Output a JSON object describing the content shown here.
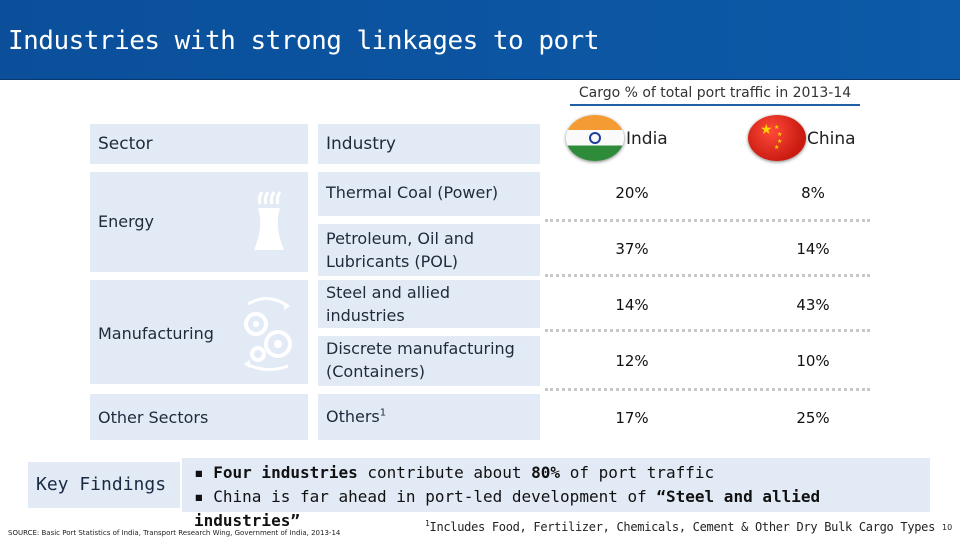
{
  "title": "Industries with strong linkages to port",
  "cargo_caption": "Cargo % of total port traffic in 2013-14",
  "headers": {
    "sector": "Sector",
    "industry": "Industry",
    "india": "India",
    "china": "China"
  },
  "sectors": {
    "energy": "Energy",
    "manufacturing": "Manufacturing",
    "other": "Other Sectors"
  },
  "rows": [
    {
      "industry": "Thermal Coal (Power)",
      "india": "20%",
      "china": "8%"
    },
    {
      "industry": "Petroleum, Oil and Lubricants (POL)",
      "india": "37%",
      "china": "14%"
    },
    {
      "industry": "Steel and allied industries",
      "india": "14%",
      "china": "43%"
    },
    {
      "industry": "Discrete manufacturing (Containers)",
      "india": "12%",
      "china": "10%"
    },
    {
      "industry": "Others",
      "industry_sup": "1",
      "india": "17%",
      "china": "25%"
    }
  ],
  "key_findings": {
    "label": "Key Findings",
    "bullet1_bold": "Four industries",
    "bullet1_mid": " contribute about ",
    "bullet1_bold2": "80%",
    "bullet1_end": " of port traffic",
    "bullet2_start": "China is far ahead in port-led development of ",
    "bullet2_bold": "“Steel and allied industries”"
  },
  "source": "SOURCE: Basic Port Statistics of India, Transport Research Wing, Government of India, 2013-14",
  "footnote_sup": "1",
  "footnote": "Includes Food, Fertilizer, Chemicals, Cement & Other Dry Bulk Cargo Types",
  "page_number": "10",
  "icons": {
    "energy": "power-plant-icon",
    "manufacturing": "gears-icon"
  },
  "colors": {
    "title_bar": "#0b4f9a",
    "cell_bg": "#e2eaf5"
  }
}
